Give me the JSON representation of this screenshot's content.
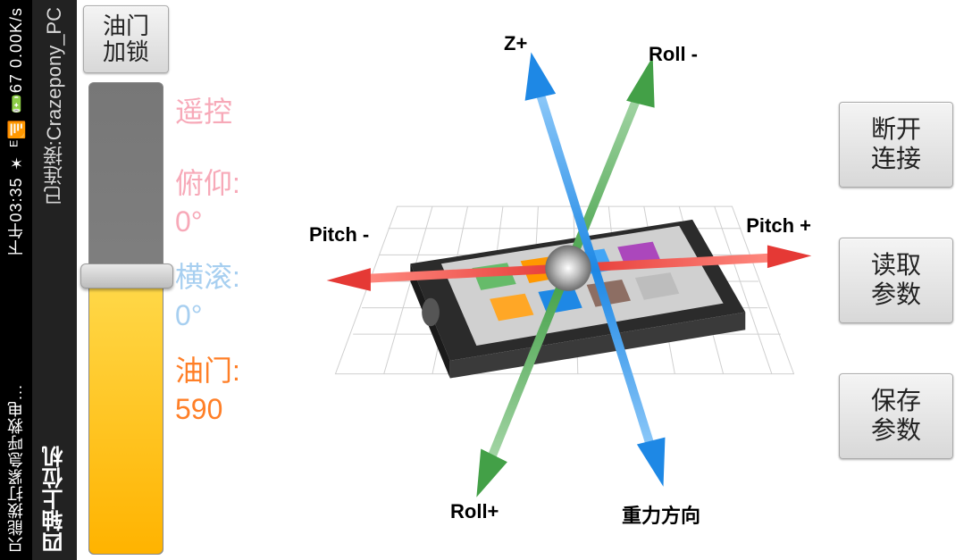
{
  "statusbar": {
    "notification": "只能拨打紧急呼救电...",
    "netspeed": "0.00K/s",
    "icons": "✶ ᴱ📶 🔋67",
    "time": "下午03:35"
  },
  "titlebar": {
    "app_title": "四轴上位机",
    "connection": "已连接:Crazepony_PC"
  },
  "throttle": {
    "lock_label": "油门\n加锁",
    "value": 590,
    "max": 1000,
    "fill_color": "#ffb300",
    "track_color": "#808080"
  },
  "readings": {
    "rc_label": "遥控",
    "pitch_label": "俯仰:",
    "pitch_value": "0°",
    "roll_label": "横滚:",
    "roll_value": "0°",
    "throttle_label": "油门:",
    "throttle_value": "590"
  },
  "diagram": {
    "labels": {
      "z_plus": "Z+",
      "roll_minus": "Roll -",
      "pitch_minus": "Pitch -",
      "pitch_plus": "Pitch +",
      "roll_plus": "Roll+",
      "gravity": "重力方向"
    },
    "colors": {
      "pitch_axis": "#e53935",
      "roll_axis": "#43a047",
      "z_axis": "#1e88e5",
      "grid": "#cfcfcf",
      "device_body": "#2b2b2b",
      "device_face": "#d0d0d0"
    }
  },
  "buttons": {
    "disconnect": "断开\n连接",
    "read_params": "读取\n参数",
    "save_params": "保存\n参数"
  }
}
